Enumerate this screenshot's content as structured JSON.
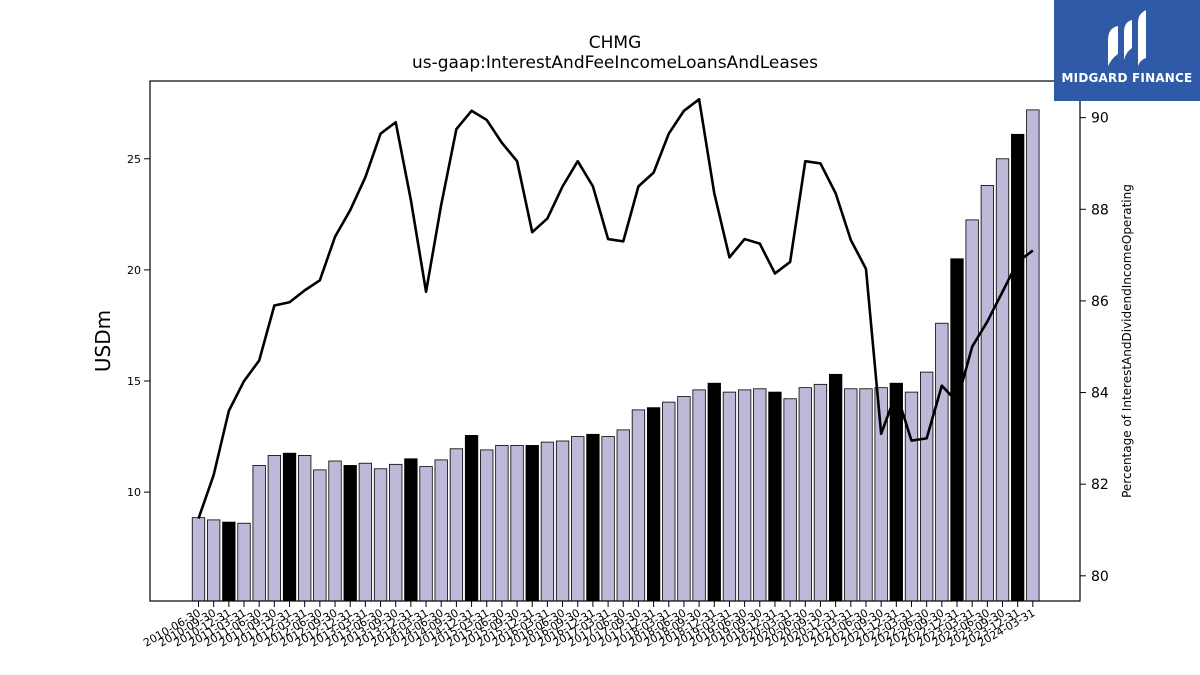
{
  "chart_data": {
    "type": "bar",
    "title": "CHMG",
    "subtitle": "us-gaap:InterestAndFeeIncomeLoansAndLeases",
    "ylabel": "USDm",
    "y2label": "Percentage of InterestAndDividendIncomeOperating",
    "ylim": [
      5.1,
      28.5
    ],
    "y2lim": [
      79.45,
      90.8
    ],
    "yticks": [
      10,
      15,
      20,
      25
    ],
    "y2ticks": [
      80,
      82,
      84,
      86,
      88,
      90
    ],
    "grid": false,
    "categories": [
      "2010-06-30",
      "2010-09-30",
      "2010-12-31",
      "2011-03-31",
      "2011-06-30",
      "2011-09-30",
      "2011-12-31",
      "2012-03-31",
      "2012-06-30",
      "2012-09-30",
      "2012-12-31",
      "2013-03-31",
      "2013-06-30",
      "2013-09-30",
      "2013-12-31",
      "2014-03-31",
      "2014-06-30",
      "2014-09-30",
      "2014-12-31",
      "2015-03-31",
      "2015-06-30",
      "2015-09-30",
      "2015-12-31",
      "2016-03-31",
      "2016-06-30",
      "2016-09-30",
      "2016-12-31",
      "2017-03-31",
      "2017-06-30",
      "2017-09-30",
      "2017-12-31",
      "2018-03-31",
      "2018-06-30",
      "2018-09-30",
      "2018-12-31",
      "2019-03-31",
      "2019-06-30",
      "2019-09-30",
      "2019-12-31",
      "2020-03-31",
      "2020-06-30",
      "2020-09-30",
      "2020-12-31",
      "2021-03-31",
      "2021-06-30",
      "2021-09-30",
      "2021-12-31",
      "2022-03-31",
      "2022-06-30",
      "2022-09-30",
      "2022-12-31",
      "2023-03-31",
      "2023-06-30",
      "2023-09-30",
      "2023-12-31",
      "2024-03-31"
    ],
    "series": [
      {
        "kind": "bar",
        "axis": "left",
        "values": [
          8.85,
          8.75,
          8.65,
          8.6,
          11.2,
          11.65,
          11.75,
          11.65,
          11.0,
          11.4,
          11.2,
          11.3,
          11.05,
          11.25,
          11.5,
          11.15,
          11.45,
          11.95,
          12.55,
          11.9,
          12.1,
          12.1,
          12.1,
          12.25,
          12.3,
          12.5,
          12.6,
          12.5,
          12.8,
          13.7,
          13.8,
          14.05,
          14.3,
          14.6,
          14.9,
          14.5,
          14.6,
          14.65,
          14.5,
          14.2,
          14.7,
          14.85,
          15.3,
          14.65,
          14.65,
          14.7,
          14.9,
          14.5,
          15.4,
          17.6,
          20.5,
          22.25,
          23.8,
          25.0,
          26.1,
          27.2
        ],
        "highlight": [
          0,
          0,
          1,
          0,
          0,
          0,
          1,
          0,
          0,
          0,
          1,
          0,
          0,
          0,
          1,
          0,
          0,
          0,
          1,
          0,
          0,
          0,
          1,
          0,
          0,
          0,
          1,
          0,
          0,
          0,
          1,
          0,
          0,
          0,
          1,
          0,
          0,
          0,
          1,
          0,
          0,
          0,
          1,
          0,
          0,
          0,
          1,
          0,
          0,
          0,
          1,
          0,
          0,
          0,
          1,
          0
        ],
        "color": "#bcbad8",
        "highlight_color": "#000000"
      },
      {
        "kind": "line",
        "axis": "right",
        "values": [
          81.25,
          82.2,
          83.6,
          84.25,
          84.7,
          85.9,
          85.97,
          86.23,
          86.45,
          87.4,
          87.98,
          88.7,
          89.65,
          89.9,
          88.2,
          86.2,
          88.1,
          89.75,
          90.15,
          89.95,
          89.45,
          89.05,
          87.5,
          87.8,
          88.5,
          89.05,
          88.5,
          87.35,
          87.3,
          88.5,
          88.8,
          89.65,
          90.15,
          90.4,
          88.35,
          86.95,
          87.35,
          87.25,
          86.6,
          86.85,
          89.05,
          89.0,
          88.35,
          87.33,
          86.7,
          83.1,
          84.0,
          82.95,
          83.0,
          84.15,
          83.8,
          85.0,
          85.55,
          86.2,
          86.85,
          87.1
        ],
        "color": "#000000"
      }
    ]
  },
  "logo": {
    "text": "MIDGARD FINANCE",
    "bg_color": "#2f5aa8"
  }
}
